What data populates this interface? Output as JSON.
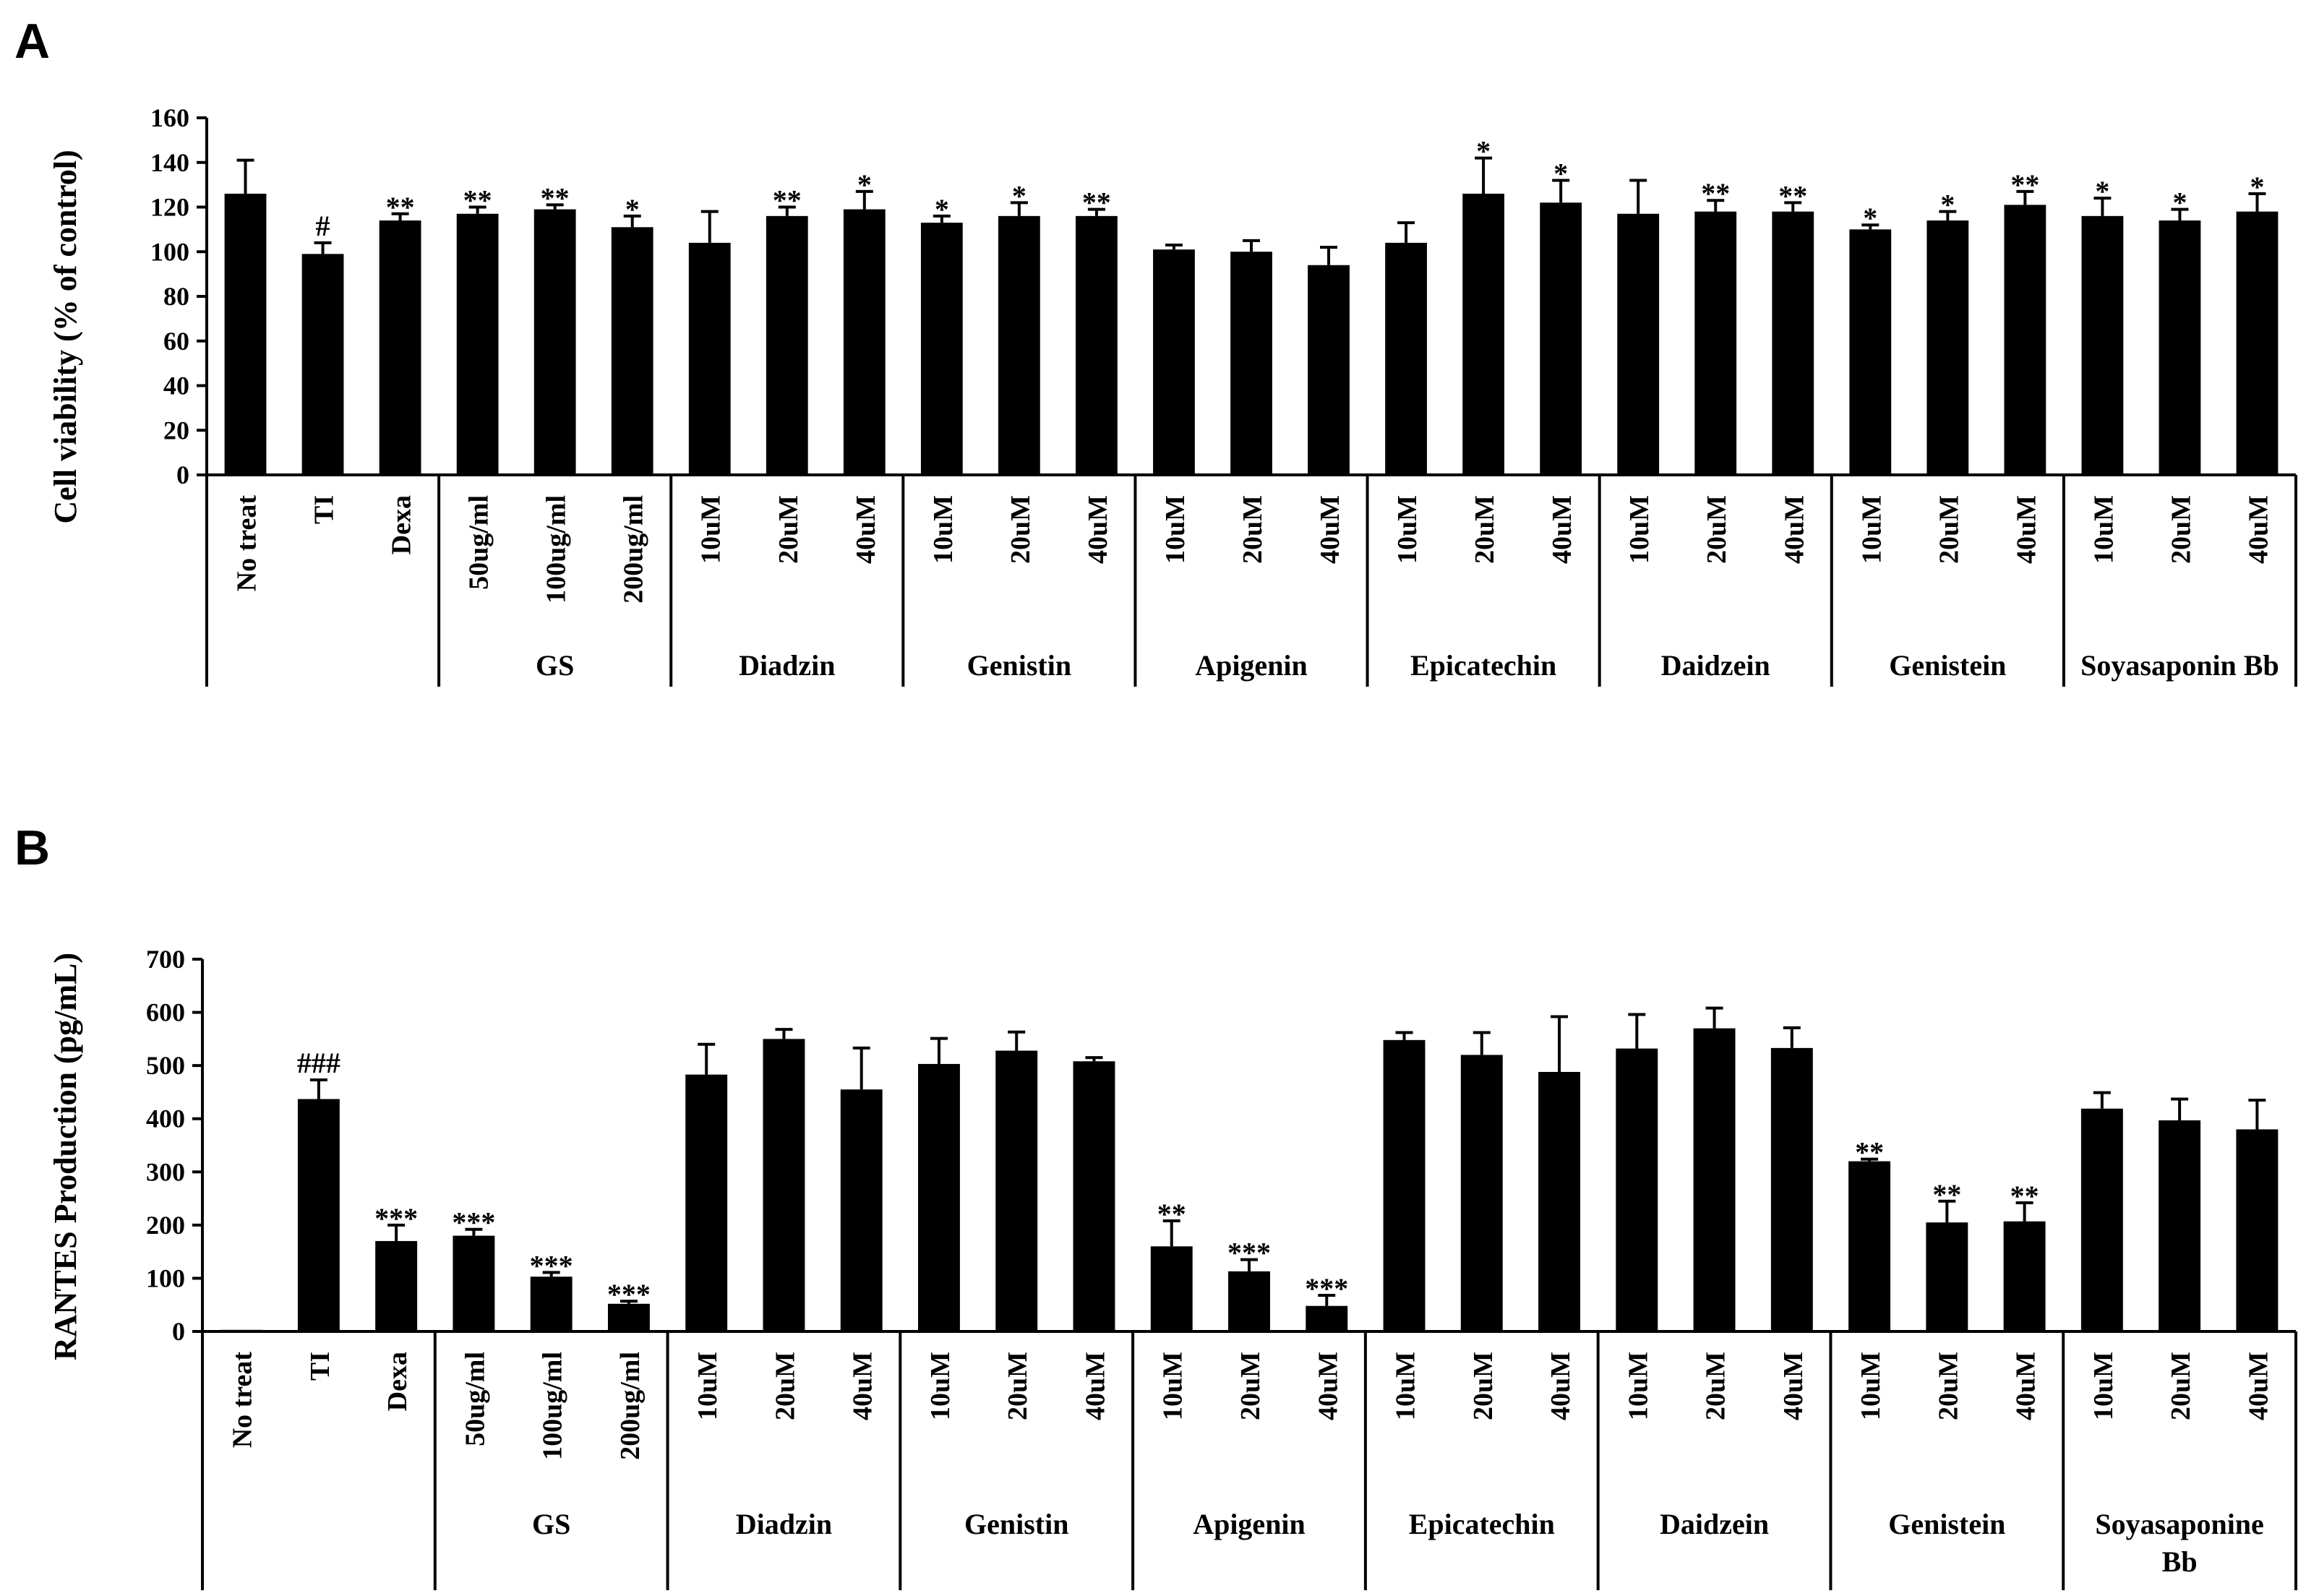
{
  "chart_data": [
    {
      "panel": "A",
      "type": "bar",
      "ylabel": "Cell viability (% of control)",
      "ylim": [
        0,
        160
      ],
      "yticks": [
        0,
        20,
        40,
        60,
        80,
        100,
        120,
        140,
        160
      ],
      "categories": [
        "No treat",
        "TI",
        "Dexa",
        "50ug/ml",
        "100ug/ml",
        "200ug/ml",
        "10uM",
        "20uM",
        "40uM",
        "10uM",
        "20uM",
        "40uM",
        "10uM",
        "20uM",
        "40uM",
        "10uM",
        "20uM",
        "40uM",
        "10uM",
        "20uM",
        "40uM",
        "10uM",
        "20uM",
        "40uM",
        "10uM",
        "20uM",
        "40uM"
      ],
      "values": [
        126,
        99,
        114,
        117,
        119,
        111,
        104,
        116,
        119,
        113,
        116,
        116,
        101,
        100,
        94,
        104,
        126,
        122,
        117,
        118,
        118,
        110,
        114,
        121,
        116,
        114,
        118
      ],
      "errors": [
        15,
        5,
        3,
        3,
        2,
        5,
        14,
        4,
        8,
        3,
        6,
        3,
        2,
        5,
        8,
        9,
        16,
        10,
        15,
        5,
        4,
        2,
        4,
        6,
        8,
        5,
        8
      ],
      "annotations": [
        "",
        "#",
        "**",
        "**",
        "**",
        "*",
        "",
        "**",
        "*",
        "*",
        "*",
        "**",
        "",
        "",
        "",
        "",
        "*",
        "*",
        "",
        "**",
        "**",
        "*",
        "*",
        "**",
        "*",
        "*",
        "*"
      ],
      "groups": [
        {
          "label": "",
          "start": 0,
          "end": 2
        },
        {
          "label": "GS",
          "start": 3,
          "end": 5
        },
        {
          "label": "Diadzin",
          "start": 6,
          "end": 8
        },
        {
          "label": "Genistin",
          "start": 9,
          "end": 11
        },
        {
          "label": "Apigenin",
          "start": 12,
          "end": 14
        },
        {
          "label": "Epicatechin",
          "start": 15,
          "end": 17
        },
        {
          "label": "Daidzein",
          "start": 18,
          "end": 20
        },
        {
          "label": "Genistein",
          "start": 21,
          "end": 23
        },
        {
          "label": "Soyasaponin Bb",
          "start": 24,
          "end": 26
        }
      ],
      "grid": false,
      "colors": {
        "bar": "#000000"
      }
    },
    {
      "panel": "B",
      "type": "bar",
      "ylabel": "RANTES Production (pg/mL)",
      "ylim": [
        0,
        700
      ],
      "yticks": [
        0,
        100,
        200,
        300,
        400,
        500,
        600,
        700
      ],
      "categories": [
        "No treat",
        "TI",
        "Dexa",
        "50ug/ml",
        "100ug/ml",
        "200ug/ml",
        "10uM",
        "20uM",
        "40uM",
        "10uM",
        "20uM",
        "40uM",
        "10uM",
        "20uM",
        "40uM",
        "10uM",
        "20uM",
        "40uM",
        "10uM",
        "20uM",
        "40uM",
        "10uM",
        "20uM",
        "40uM",
        "10uM",
        "20uM",
        "40uM"
      ],
      "values": [
        3,
        437,
        170,
        180,
        103,
        52,
        483,
        550,
        455,
        503,
        528,
        508,
        160,
        113,
        48,
        548,
        520,
        488,
        532,
        570,
        533,
        320,
        205,
        207,
        419,
        397,
        380
      ],
      "errors": [
        0,
        36,
        30,
        12,
        8,
        5,
        57,
        18,
        78,
        48,
        35,
        7,
        48,
        22,
        20,
        14,
        42,
        104,
        64,
        38,
        38,
        4,
        40,
        35,
        30,
        40,
        55
      ],
      "annotations": [
        "",
        "###",
        "***",
        "***",
        "***",
        "***",
        "",
        "",
        "",
        "",
        "",
        "",
        "**",
        "***",
        "***",
        "",
        "",
        "",
        "",
        "",
        "",
        "**",
        "**",
        "**",
        "",
        "",
        ""
      ],
      "groups": [
        {
          "label": "",
          "start": 0,
          "end": 2
        },
        {
          "label": "GS",
          "start": 3,
          "end": 5
        },
        {
          "label": "Diadzin",
          "start": 6,
          "end": 8
        },
        {
          "label": "Genistin",
          "start": 9,
          "end": 11
        },
        {
          "label": "Apigenin",
          "start": 12,
          "end": 14
        },
        {
          "label": "Epicatechin",
          "start": 15,
          "end": 17
        },
        {
          "label": "Daidzein",
          "start": 18,
          "end": 20
        },
        {
          "label": "Genistein",
          "start": 21,
          "end": 23
        },
        {
          "label": "Soyasaponine Bb",
          "start": 24,
          "end": 26
        }
      ],
      "grid": false,
      "colors": {
        "bar": "#000000"
      }
    }
  ]
}
